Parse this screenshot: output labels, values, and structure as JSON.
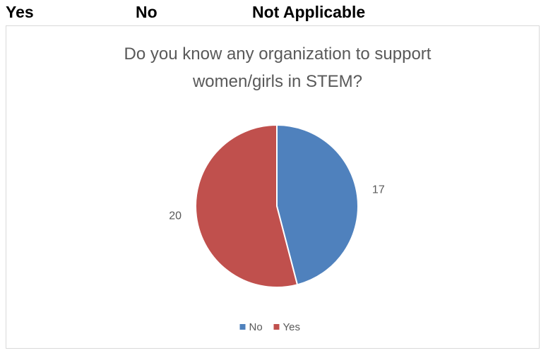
{
  "header": {
    "labels": [
      "Yes",
      "No",
      "Not Applicable"
    ]
  },
  "chart_data": {
    "type": "pie",
    "title_lines": [
      "Do you know any organization to support",
      "women/girls in STEM?"
    ],
    "slices": [
      {
        "label": "No",
        "value": 17,
        "color": "#4f81bd"
      },
      {
        "label": "Yes",
        "value": 20,
        "color": "#c0504d"
      }
    ],
    "legend": {
      "position": "bottom",
      "entries": [
        {
          "label": "No",
          "color": "#4f81bd"
        },
        {
          "label": "Yes",
          "color": "#c0504d"
        }
      ]
    },
    "data_labels_shown": true
  }
}
